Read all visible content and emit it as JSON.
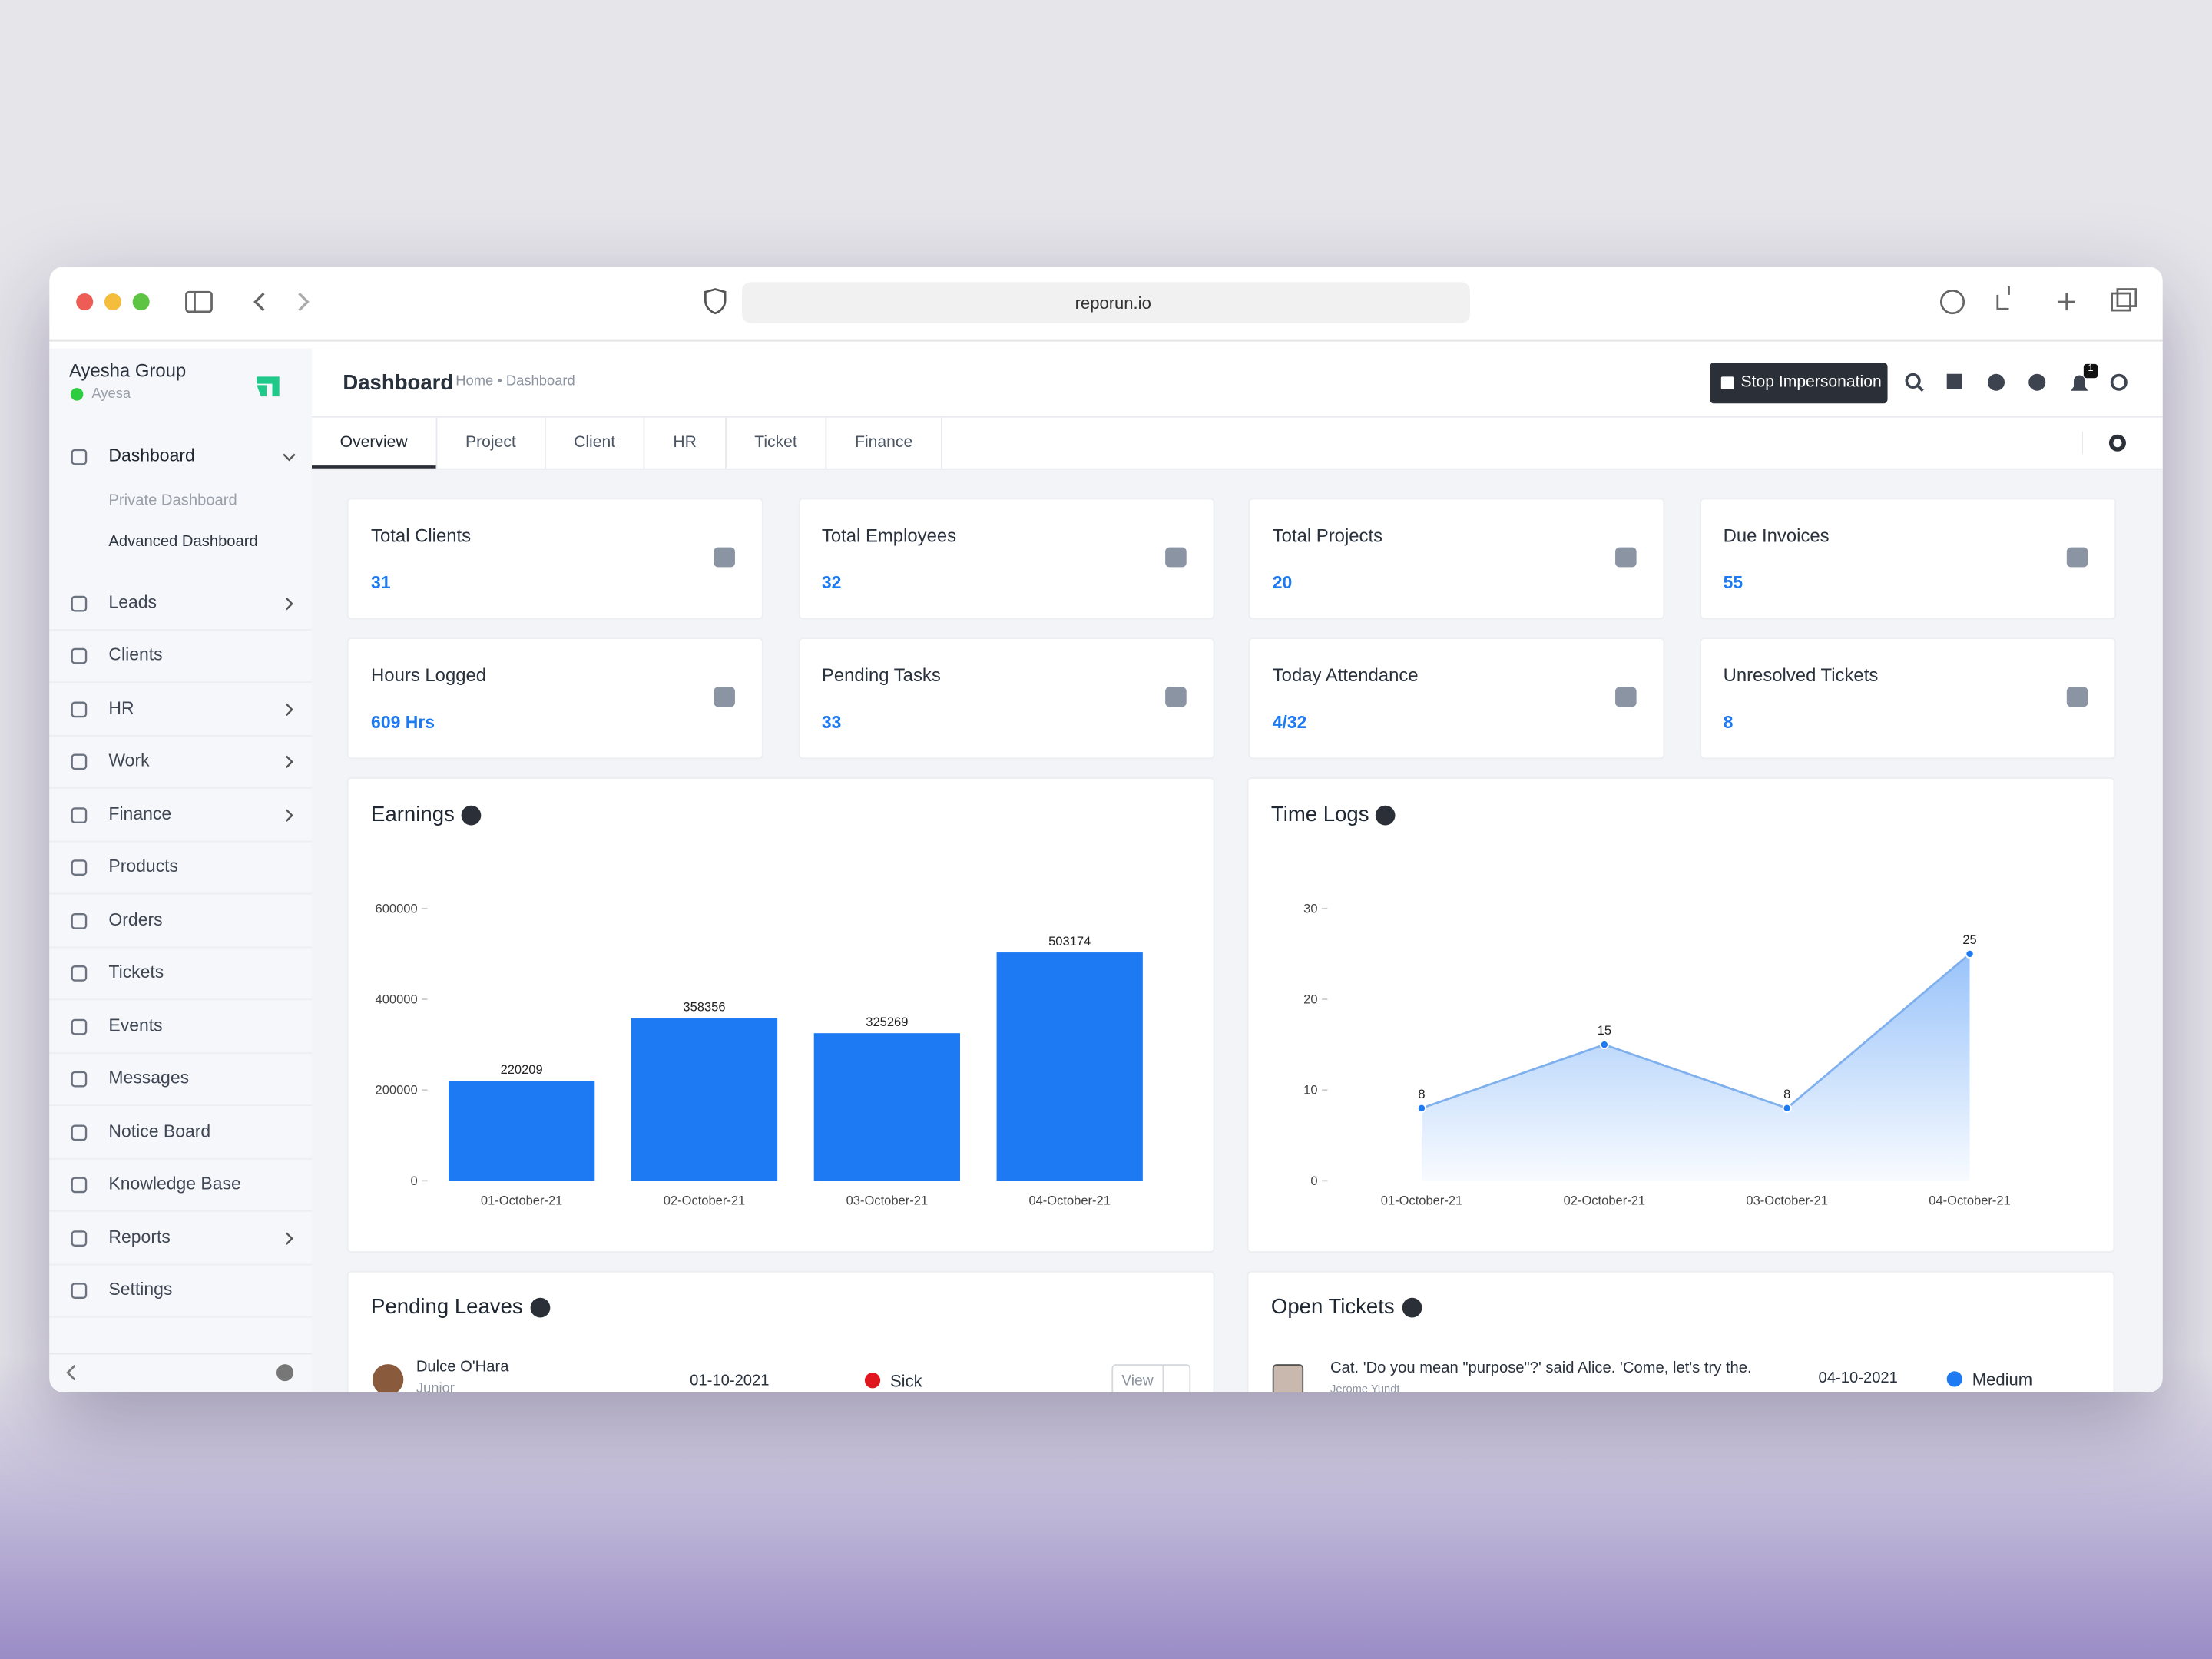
{
  "browser": {
    "url": "reporun.io"
  },
  "sidebar": {
    "company": "Ayesha Group",
    "user": "Ayesa",
    "nav": [
      {
        "label": "Dashboard",
        "submenu": true,
        "children": [
          "Private Dashboard",
          "Advanced Dashboard"
        ]
      },
      {
        "label": "Leads",
        "submenu": true
      },
      {
        "label": "Clients"
      },
      {
        "label": "HR",
        "submenu": true
      },
      {
        "label": "Work",
        "submenu": true
      },
      {
        "label": "Finance",
        "submenu": true
      },
      {
        "label": "Products"
      },
      {
        "label": "Orders"
      },
      {
        "label": "Tickets"
      },
      {
        "label": "Events"
      },
      {
        "label": "Messages"
      },
      {
        "label": "Notice Board"
      },
      {
        "label": "Knowledge Base"
      },
      {
        "label": "Reports",
        "submenu": true
      },
      {
        "label": "Settings"
      }
    ]
  },
  "header": {
    "title": "Dashboard",
    "breadcrumb": "Home • Dashboard",
    "button": "Stop Impersonation",
    "notifications": "1"
  },
  "tabs": [
    "Overview",
    "Project",
    "Client",
    "HR",
    "Ticket",
    "Finance"
  ],
  "stats": [
    {
      "label": "Total Clients",
      "value": "31"
    },
    {
      "label": "Total Employees",
      "value": "32"
    },
    {
      "label": "Total Projects",
      "value": "20"
    },
    {
      "label": "Due Invoices",
      "value": "55"
    },
    {
      "label": "Hours Logged",
      "value": "609 Hrs"
    },
    {
      "label": "Pending Tasks",
      "value": "33"
    },
    {
      "label": "Today Attendance",
      "value": "4/32"
    },
    {
      "label": "Unresolved Tickets",
      "value": "8"
    }
  ],
  "chart_data": [
    {
      "type": "bar",
      "title": "Earnings",
      "categories": [
        "01-October-21",
        "02-October-21",
        "03-October-21",
        "04-October-21"
      ],
      "values": [
        220209,
        358356,
        325269,
        503174
      ],
      "color": "#1d7af3",
      "ylim": [
        0,
        600000
      ],
      "yticks": [
        0,
        200000,
        400000,
        600000
      ],
      "grid": false
    },
    {
      "type": "area",
      "title": "Time Logs",
      "categories": [
        "01-October-21",
        "02-October-21",
        "03-October-21",
        "04-October-21"
      ],
      "values": [
        8,
        15,
        8,
        25
      ],
      "color": "#1d7af3",
      "ylim": [
        0,
        30
      ],
      "yticks": [
        0,
        10,
        20,
        30
      ],
      "grid": false
    }
  ],
  "pending_leaves": {
    "title": "Pending Leaves",
    "rows": [
      {
        "name": "Dulce O'Hara",
        "role": "Junior",
        "date": "01-10-2021",
        "type": "Sick",
        "action": "View"
      }
    ]
  },
  "open_tickets": {
    "title": "Open Tickets",
    "rows": [
      {
        "subject": "Cat. 'Do you mean \"purpose\"?' said Alice. 'Come, let's try the.",
        "author": "Jerome Yundt",
        "date": "04-10-2021",
        "priority": "Medium"
      }
    ]
  }
}
